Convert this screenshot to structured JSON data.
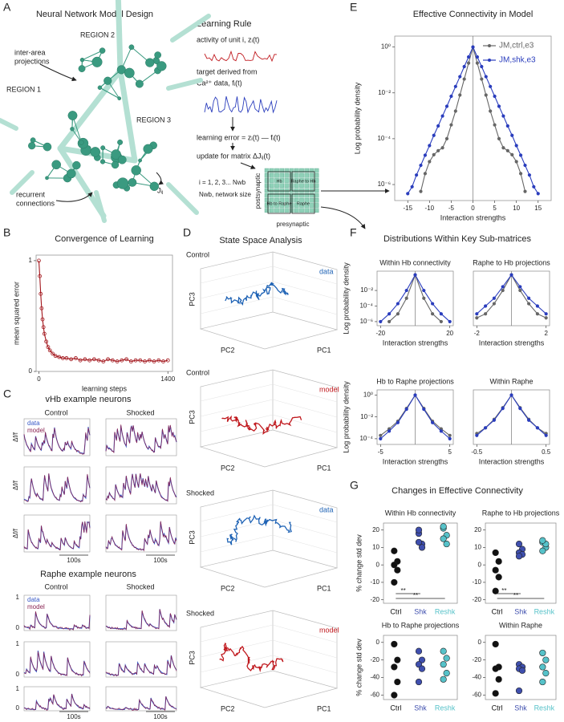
{
  "panel_letters": [
    "A",
    "B",
    "C",
    "D",
    "E",
    "F",
    "G"
  ],
  "A": {
    "title": "Neural Network Model Design",
    "region_labels": [
      "REGION 2",
      "REGION 1",
      "REGION 3"
    ],
    "interarea": [
      "inter-area",
      "projections"
    ],
    "recurrent": [
      "recurrent",
      "connections"
    ],
    "weight": "Jᵢⱼ"
  },
  "learning_rule": {
    "title": "Learning Rule",
    "activity": "activity of unit  i,  zᵢ(t)",
    "target": [
      "target derived from",
      "Ca²⁺ data,  fᵢ(t)"
    ],
    "error": "learning error = zᵢ(t) — fᵢ(t)",
    "update": "update for matrix ΔJᵢⱼ(t)",
    "index": "i = 1, 2, 3... Nwb",
    "size": "Nwb, network size",
    "post": "postsynaptic",
    "pre": "presynaptic",
    "quadrants": [
      "Hb",
      "Raphe to Hb",
      "Hb to Raphe",
      "Raphe"
    ]
  },
  "C": {
    "vhb_title": "vHb example neurons",
    "raphe_title": "Raphe example neurons",
    "conditions": [
      "Control",
      "Shocked"
    ],
    "legend": [
      "data",
      "model"
    ],
    "ylabel": "Δf/f",
    "yticks": [
      "1",
      "0"
    ],
    "scale": "100s"
  },
  "D": {
    "title": "State Space Analysis",
    "plots": [
      {
        "condition": "Control",
        "source": "data"
      },
      {
        "condition": "Control",
        "source": "model"
      },
      {
        "condition": "Shocked",
        "source": "data"
      },
      {
        "condition": "Shocked",
        "source": "model"
      }
    ],
    "axes": [
      "PC3",
      "PC2",
      "PC1"
    ]
  },
  "F_title": "Distributions Within Key Sub-matrices",
  "G_title": "Changes in Effective Connectivity",
  "chart_data": [
    {
      "type": "line",
      "title": "Convergence of Learning",
      "xlabel": "learning steps",
      "ylabel": "mean squared error",
      "x": [
        0,
        10,
        20,
        30,
        40,
        50,
        60,
        80,
        100,
        120,
        150,
        180,
        220,
        260,
        300,
        350,
        400,
        450,
        500,
        550,
        600,
        650,
        700,
        750,
        800,
        850,
        900,
        950,
        1000,
        1050,
        1100,
        1150,
        1200,
        1250,
        1300,
        1350,
        1400
      ],
      "series": [
        {
          "color": "#a3161c",
          "values": [
            1,
            0.86,
            0.7,
            0.57,
            0.47,
            0.4,
            0.34,
            0.27,
            0.22,
            0.19,
            0.16,
            0.14,
            0.13,
            0.12,
            0.12,
            0.11,
            0.12,
            0.1,
            0.11,
            0.1,
            0.11,
            0.1,
            0.09,
            0.11,
            0.1,
            0.09,
            0.1,
            0.11,
            0.09,
            0.1,
            0.1,
            0.09,
            0.1,
            0.09,
            0.1,
            0.09,
            0.1
          ]
        }
      ],
      "xlim": [
        -30,
        1450
      ],
      "ylim": [
        0,
        1.05
      ],
      "xticks": [
        0,
        1400
      ],
      "yticks": [
        0,
        1
      ]
    },
    {
      "type": "line",
      "title": "Effective Connectivity in Model",
      "xlabel": "Interaction strengths",
      "ylabel": "Log probability density",
      "log_y": true,
      "x": [
        -15,
        -14,
        -13,
        -12,
        -11,
        -10,
        -9,
        -8,
        -7,
        -6,
        -5,
        -4,
        -3,
        -2,
        -1,
        0,
        1,
        2,
        3,
        4,
        5,
        6,
        7,
        8,
        9,
        10,
        11,
        12,
        13,
        14,
        15
      ],
      "series": [
        {
          "name": "JM,ctrl,e3",
          "color": "#666666",
          "values": [
            null,
            null,
            null,
            5e-07,
            3e-06,
            1e-05,
            2e-05,
            3e-05,
            4e-05,
            0.0001,
            0.0004,
            0.0016,
            0.008,
            0.04,
            0.2,
            1,
            0.2,
            0.04,
            0.008,
            0.0016,
            0.0004,
            0.0001,
            4e-05,
            3e-05,
            2e-05,
            1e-05,
            3e-06,
            5e-07,
            null,
            null,
            null
          ]
        },
        {
          "name": "JM,shk,e3",
          "color": "#2a3dbd",
          "values": [
            4e-07,
            8e-07,
            2.6e-06,
            6.9e-06,
            1.9e-05,
            5e-05,
            0.00014,
            0.00036,
            0.00098,
            0.0026,
            0.0071,
            0.019,
            0.051,
            0.14,
            0.37,
            1,
            0.37,
            0.14,
            0.051,
            0.019,
            0.0071,
            0.0026,
            0.00098,
            0.00036,
            0.00014,
            5e-05,
            1.9e-05,
            6.9e-06,
            2.6e-06,
            8e-07,
            4e-07
          ]
        }
      ],
      "xlim": [
        -18,
        18
      ],
      "ylim": [
        2e-07,
        3
      ],
      "xticks": [
        -15,
        -10,
        -5,
        0,
        5,
        10,
        15
      ],
      "yticks": [
        {
          "value": 1,
          "label": "10⁰"
        },
        {
          "value": 0.01,
          "label": "10⁻²"
        },
        {
          "value": 0.0001,
          "label": "10⁻⁴"
        },
        {
          "value": 1e-06,
          "label": "10⁻⁶"
        }
      ],
      "vline": 0,
      "legend": "upper right"
    },
    {
      "type": "line",
      "title": "Within Hb connectivity",
      "xlabel": "Interaction strengths",
      "ylabel": "Log probability density",
      "log_y": true,
      "x": [
        -20,
        -15,
        -10,
        -5,
        0,
        5,
        10,
        15,
        20
      ],
      "series": [
        {
          "color": "#666666",
          "values": [
            null,
            1e-06,
            1e-05,
            0.001,
            1,
            0.001,
            1e-05,
            1e-06,
            null
          ]
        },
        {
          "color": "#2a3dbd",
          "values": [
            1e-06,
            1e-05,
            0.0002,
            0.01,
            1,
            0.01,
            0.0002,
            1e-05,
            1e-06
          ]
        }
      ],
      "xlim": [
        -22,
        22
      ],
      "ylim": [
        3e-07,
        3
      ],
      "xticks": [
        -20,
        20
      ],
      "yticks": [
        {
          "value": 0.01,
          "label": "10⁻²"
        },
        {
          "value": 0.0001,
          "label": "10⁻⁴"
        },
        {
          "value": 1e-06,
          "label": "10⁻⁶"
        }
      ],
      "vline": 0
    },
    {
      "type": "line",
      "title": "Raphe to Hb projections",
      "xlabel": "Interaction strengths",
      "log_y": true,
      "x": [
        -2,
        -1.5,
        -1,
        -0.5,
        0,
        0.5,
        1,
        1.5,
        2
      ],
      "series": [
        {
          "color": "#666666",
          "values": [
            3e-06,
            1e-05,
            0.0002,
            0.01,
            1,
            0.01,
            0.0002,
            1e-05,
            3e-06
          ]
        },
        {
          "color": "#2a3dbd",
          "values": [
            1e-05,
            0.0001,
            0.001,
            0.03,
            1,
            0.03,
            0.001,
            0.0001,
            1e-05
          ]
        }
      ],
      "xlim": [
        -2.2,
        2.2
      ],
      "ylim": [
        3e-07,
        3
      ],
      "xticks": [
        -2,
        2
      ],
      "vline": 0
    },
    {
      "type": "line",
      "title": "Hb to Raphe projections",
      "xlabel": "Interaction strengths",
      "ylabel": "Log probability density",
      "log_y": true,
      "x": [
        -5,
        -3.75,
        -2.5,
        -1.25,
        0,
        1.25,
        2.5,
        3.75,
        5
      ],
      "series": [
        {
          "color": "#666666",
          "values": [
            0.0002,
            0.0008,
            0.004,
            0.06,
            1,
            0.06,
            0.004,
            0.0008,
            0.0002
          ]
        },
        {
          "color": "#2a3dbd",
          "values": [
            0.0001,
            0.0005,
            0.003,
            0.05,
            1,
            0.05,
            0.003,
            0.0005,
            0.0001
          ]
        }
      ],
      "xlim": [
        -5.5,
        5.5
      ],
      "ylim": [
        3e-05,
        3
      ],
      "xticks": [
        -5,
        5
      ],
      "yticks": [
        {
          "value": 1,
          "label": "10⁰"
        },
        {
          "value": 0.01,
          "label": "10⁻²"
        },
        {
          "value": 0.0001,
          "label": "10⁻⁴"
        }
      ],
      "vline": 0
    },
    {
      "type": "line",
      "title": "Within Raphe",
      "xlabel": "Interaction strengths",
      "log_y": true,
      "x": [
        -0.5,
        -0.375,
        -0.25,
        -0.125,
        0,
        0.125,
        0.25,
        0.375,
        0.5
      ],
      "series": [
        {
          "color": "#666666",
          "values": [
            0.0003,
            0.001,
            0.006,
            0.07,
            1,
            0.07,
            0.006,
            0.001,
            0.0003
          ]
        },
        {
          "color": "#2a3dbd",
          "values": [
            0.0002,
            0.001,
            0.005,
            0.06,
            1,
            0.06,
            0.005,
            0.001,
            0.0002
          ]
        }
      ],
      "xlim": [
        -0.55,
        0.55
      ],
      "ylim": [
        3e-05,
        3
      ],
      "xticks": [
        -0.5,
        0.5
      ],
      "vline": 0
    },
    {
      "type": "dot",
      "title": "Within Hb connectivity",
      "ylabel": "% change std dev",
      "categories": [
        "Ctrl",
        "Shk",
        "Reshk"
      ],
      "colors": [
        "#111111",
        "#3f4fae",
        "#56c2c9"
      ],
      "values": [
        [
          8,
          2,
          0,
          -3,
          -10
        ],
        [
          18,
          12,
          13,
          10,
          20
        ],
        [
          21,
          17,
          15,
          12,
          22
        ]
      ],
      "ylim": [
        -22,
        24
      ],
      "yticks": [
        -20,
        -10,
        0,
        10,
        20
      ],
      "significance": [
        "**",
        "**"
      ]
    },
    {
      "type": "dot",
      "title": "Raphe to Hb projections",
      "categories": [
        "Ctrl",
        "Shk",
        "Reshk"
      ],
      "colors": [
        "#111111",
        "#3f4fae",
        "#56c2c9"
      ],
      "values": [
        [
          7,
          2,
          -3,
          -7,
          -15
        ],
        [
          12,
          9,
          7,
          6,
          5
        ],
        [
          13,
          10,
          8,
          12,
          14
        ]
      ],
      "ylim": [
        -22,
        24
      ],
      "yticks": [
        -20,
        -10,
        0,
        10,
        20
      ],
      "significance": [
        "**",
        "**"
      ]
    },
    {
      "type": "dot",
      "title": "Hb to Raphe projections",
      "ylabel": "% change std dev",
      "categories": [
        "Ctrl",
        "Shk",
        "Reshk"
      ],
      "colors": [
        "#111111",
        "#3f4fae",
        "#56c2c9"
      ],
      "values": [
        [
          -2,
          -20,
          -28,
          -45,
          -60
        ],
        [
          -10,
          -20,
          -25,
          -30,
          -45
        ],
        [
          -10,
          -18,
          -25,
          -35,
          -42
        ]
      ],
      "ylim": [
        -65,
        8
      ],
      "yticks": [
        -60,
        -40,
        -20,
        0
      ]
    },
    {
      "type": "dot",
      "title": "Within Raphe",
      "categories": [
        "Ctrl",
        "Shk",
        "Reshk"
      ],
      "colors": [
        "#111111",
        "#3f4fae",
        "#56c2c9"
      ],
      "values": [
        [
          -2,
          -28,
          -30,
          -42,
          -58
        ],
        [
          -25,
          -28,
          -30,
          -32,
          -55
        ],
        [
          -12,
          -20,
          -28,
          -35,
          -45
        ]
      ],
      "ylim": [
        -65,
        8
      ],
      "yticks": [
        -60,
        -40,
        -20,
        0
      ]
    }
  ]
}
